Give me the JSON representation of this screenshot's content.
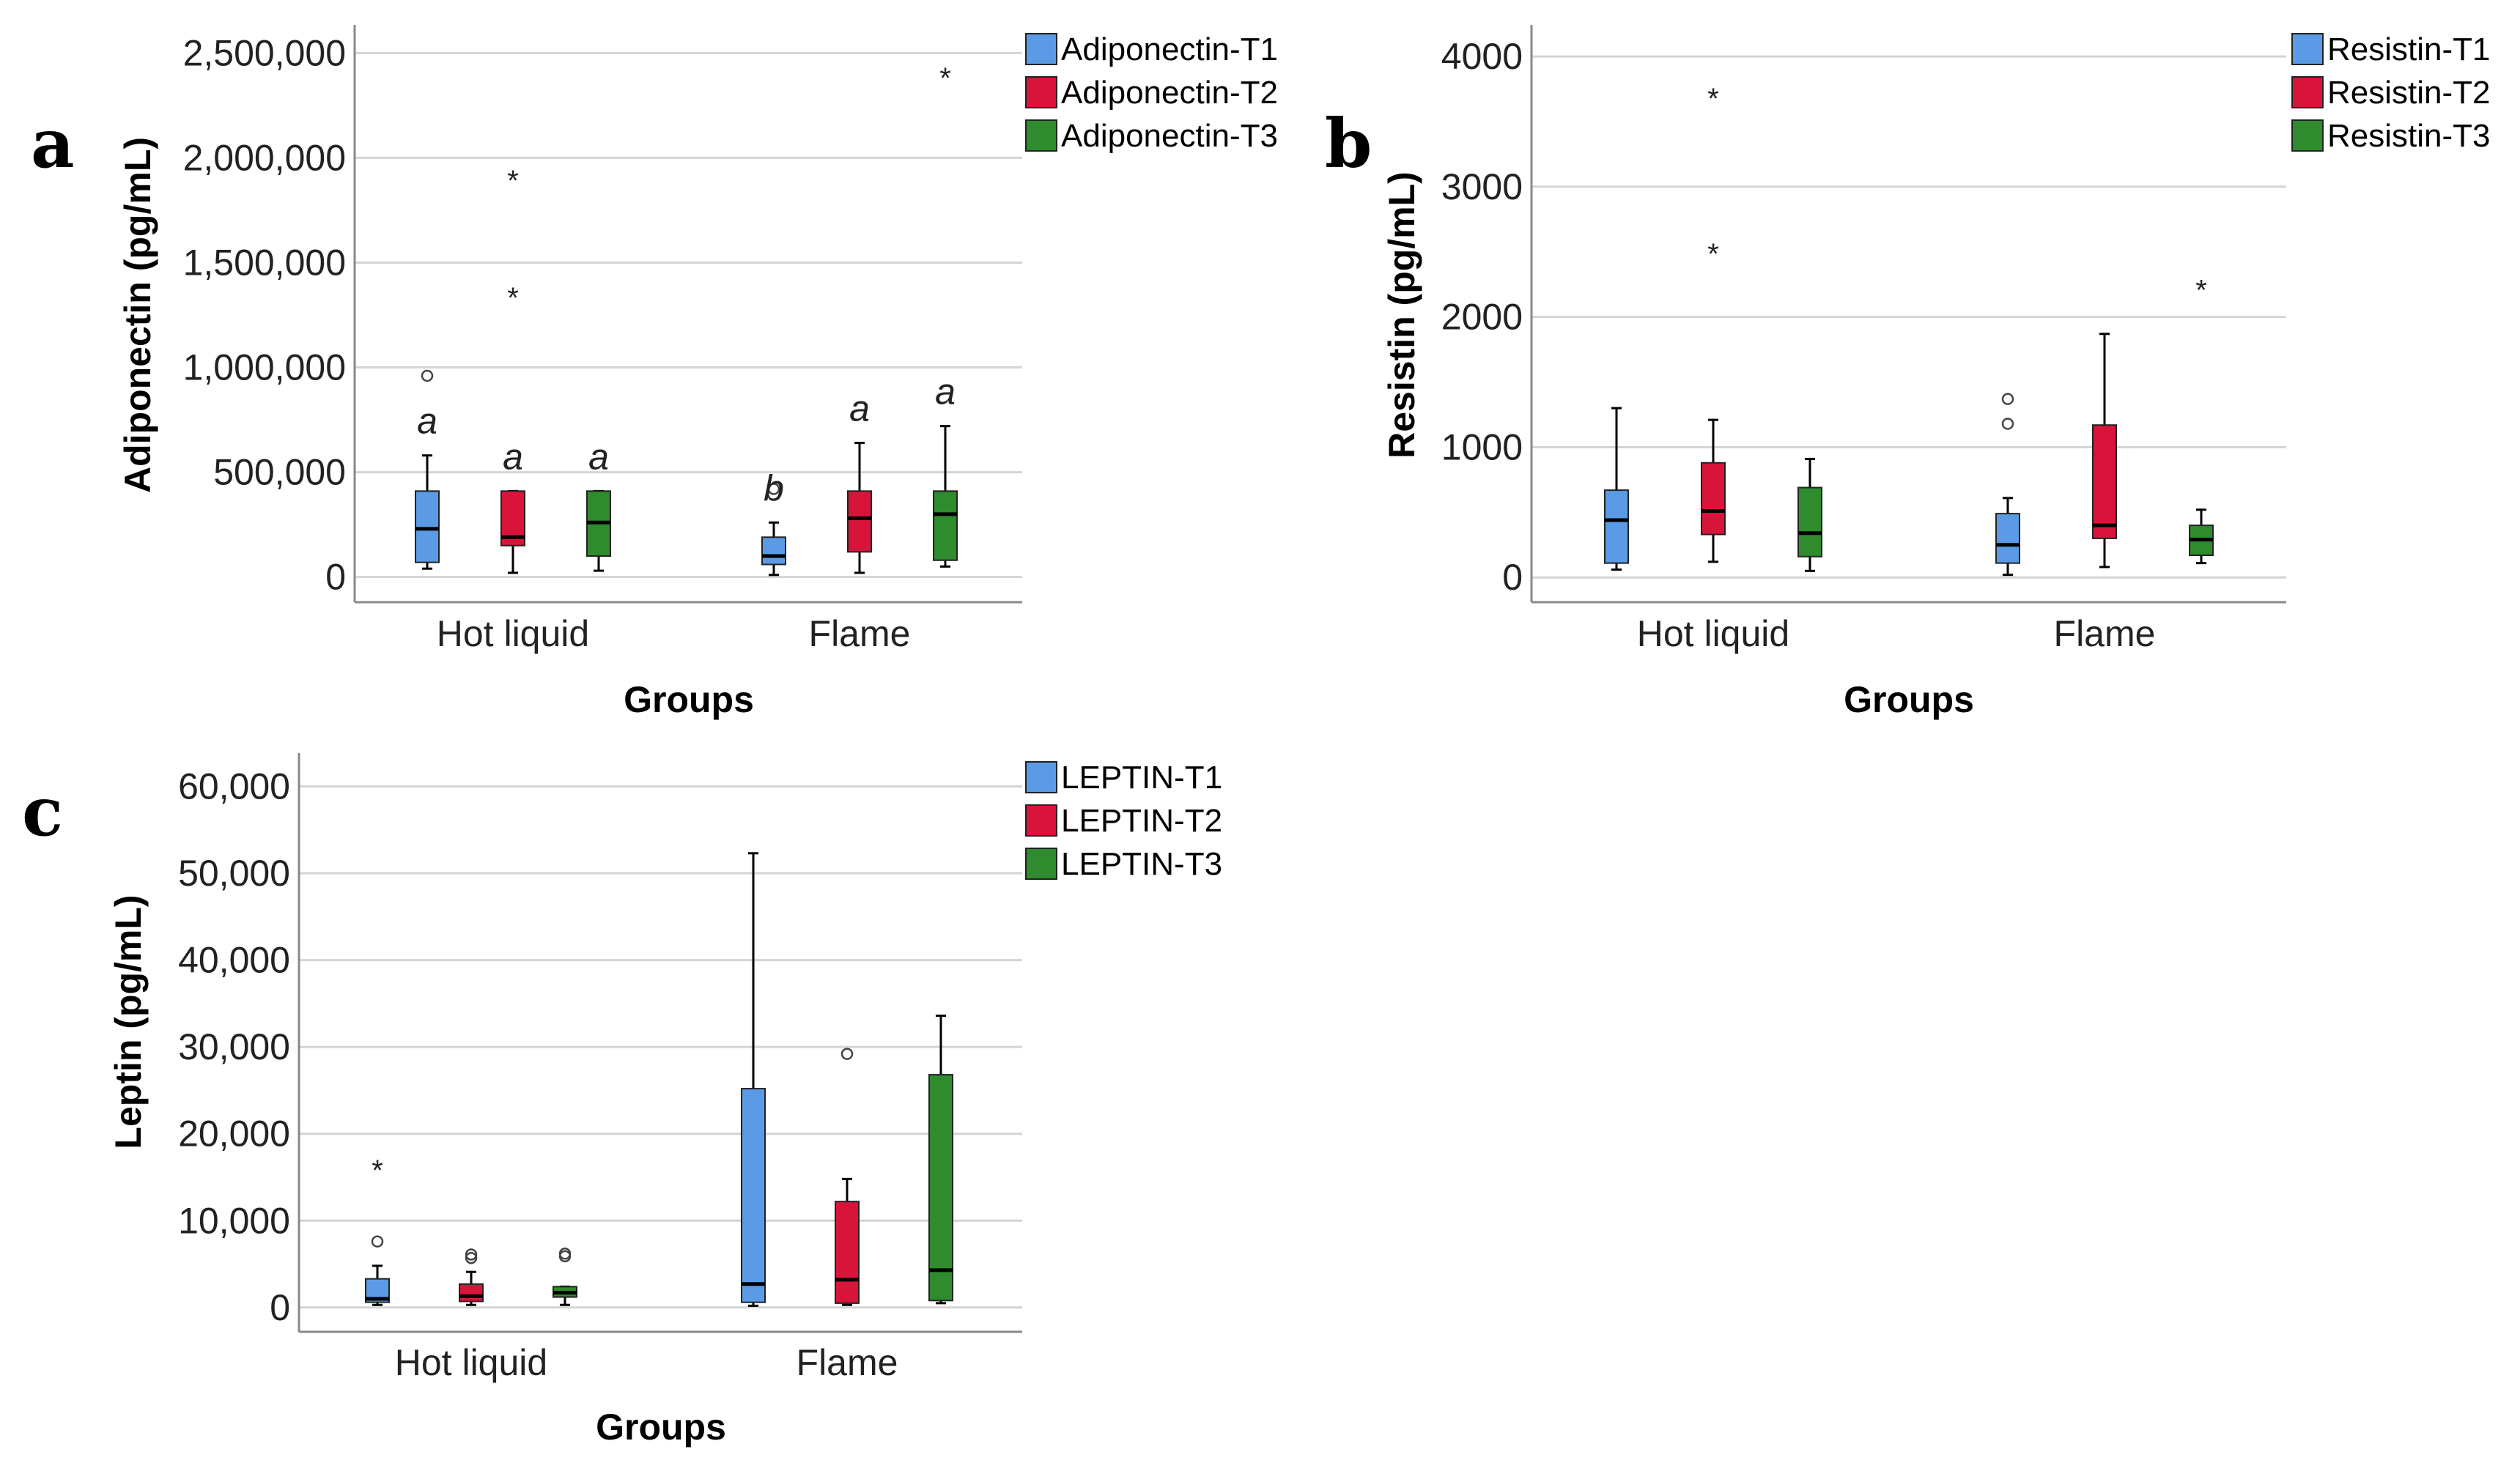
{
  "chart_data": [
    {
      "panel_label": "a",
      "type": "box",
      "xlabel": "Groups",
      "ylabel": "Adiponectin (pg/mL)",
      "ylim": [
        -120000,
        2620000
      ],
      "yticks": [
        0,
        500000,
        1000000,
        1500000,
        2000000,
        2500000
      ],
      "ytick_labels": [
        "0",
        "500,000",
        "1,000,000",
        "1,500,000",
        "2,000,000",
        "2,500,000"
      ],
      "grid": true,
      "legend_position": "top-right",
      "categories": [
        "Hot liquid",
        "Flame"
      ],
      "series": [
        {
          "name": "Adiponectin-T1",
          "color": "#5B9BE6",
          "boxes": [
            {
              "min": 40000,
              "q1": 70000,
              "median": 230000,
              "q3": 410000,
              "max": 580000,
              "outliers": [
                {
                  "value": 960000,
                  "marker": "circle"
                }
              ],
              "sig": "a"
            },
            {
              "min": 10000,
              "q1": 60000,
              "median": 100000,
              "q3": 190000,
              "max": 260000,
              "outliers": [
                {
                  "value": 420000,
                  "marker": "circle"
                }
              ],
              "sig": "b"
            }
          ]
        },
        {
          "name": "Adiponectin-T2",
          "color": "#D9143A",
          "boxes": [
            {
              "min": 20000,
              "q1": 150000,
              "median": 190000,
              "q3": 410000,
              "max": 410000,
              "outliers": [
                {
                  "value": 1340000,
                  "marker": "star"
                },
                {
                  "value": 1900000,
                  "marker": "star"
                }
              ],
              "sig": "a"
            },
            {
              "min": 20000,
              "q1": 120000,
              "median": 280000,
              "q3": 410000,
              "max": 640000,
              "outliers": [],
              "sig": "a"
            }
          ]
        },
        {
          "name": "Adiponectin-T3",
          "color": "#2E8B2E",
          "boxes": [
            {
              "min": 30000,
              "q1": 100000,
              "median": 260000,
              "q3": 410000,
              "max": 410000,
              "outliers": [],
              "sig": "a"
            },
            {
              "min": 50000,
              "q1": 80000,
              "median": 300000,
              "q3": 410000,
              "max": 720000,
              "outliers": [
                {
                  "value": 2390000,
                  "marker": "star"
                }
              ],
              "sig": "a"
            }
          ]
        }
      ]
    },
    {
      "panel_label": "b",
      "type": "box",
      "xlabel": "Groups",
      "ylabel": "Resistin (pg/mL)",
      "ylim": [
        -190,
        4220
      ],
      "yticks": [
        0,
        1000,
        2000,
        3000,
        4000
      ],
      "ytick_labels": [
        "0",
        "1000",
        "2000",
        "3000",
        "4000"
      ],
      "grid": true,
      "legend_position": "top-right",
      "categories": [
        "Hot liquid",
        "Flame"
      ],
      "series": [
        {
          "name": "Resistin-T1",
          "color": "#5B9BE6",
          "boxes": [
            {
              "min": 60,
              "q1": 110,
              "median": 440,
              "q3": 670,
              "max": 1300,
              "outliers": []
            },
            {
              "min": 20,
              "q1": 110,
              "median": 250,
              "q3": 490,
              "max": 610,
              "outliers": [
                {
                  "value": 1180,
                  "marker": "circle"
                },
                {
                  "value": 1370,
                  "marker": "circle"
                }
              ]
            }
          ]
        },
        {
          "name": "Resistin-T2",
          "color": "#D9143A",
          "boxes": [
            {
              "min": 120,
              "q1": 330,
              "median": 510,
              "q3": 880,
              "max": 1210,
              "outliers": [
                {
                  "value": 2500,
                  "marker": "star"
                },
                {
                  "value": 3690,
                  "marker": "star"
                }
              ]
            },
            {
              "min": 80,
              "q1": 300,
              "median": 400,
              "q3": 1170,
              "max": 1870,
              "outliers": []
            }
          ]
        },
        {
          "name": "Resistin-T3",
          "color": "#2E8B2E",
          "boxes": [
            {
              "min": 50,
              "q1": 160,
              "median": 340,
              "q3": 690,
              "max": 910,
              "outliers": []
            },
            {
              "min": 110,
              "q1": 170,
              "median": 290,
              "q3": 400,
              "max": 520,
              "outliers": [
                {
                  "value": 2220,
                  "marker": "star"
                }
              ]
            }
          ]
        }
      ]
    },
    {
      "panel_label": "c",
      "type": "box",
      "xlabel": "Groups",
      "ylabel": "Leptin (pg/mL)",
      "ylim": [
        -2800,
        63500
      ],
      "yticks": [
        0,
        10000,
        20000,
        30000,
        40000,
        50000,
        60000
      ],
      "ytick_labels": [
        "0",
        "10,000",
        "20,000",
        "30,000",
        "40,000",
        "50,000",
        "60,000"
      ],
      "grid": true,
      "legend_position": "top-right",
      "categories": [
        "Hot liquid",
        "Flame"
      ],
      "series": [
        {
          "name": "LEPTIN-T1",
          "color": "#5B9BE6",
          "boxes": [
            {
              "min": 300,
              "q1": 600,
              "median": 1000,
              "q3": 3300,
              "max": 4800,
              "outliers": [
                {
                  "value": 7600,
                  "marker": "circle"
                },
                {
                  "value": 16000,
                  "marker": "star"
                }
              ]
            },
            {
              "min": 200,
              "q1": 600,
              "median": 2700,
              "q3": 25200,
              "max": 52300,
              "outliers": []
            }
          ]
        },
        {
          "name": "LEPTIN-T2",
          "color": "#D9143A",
          "boxes": [
            {
              "min": 300,
              "q1": 700,
              "median": 1300,
              "q3": 2700,
              "max": 4100,
              "outliers": [
                {
                  "value": 5700,
                  "marker": "circle"
                },
                {
                  "value": 6100,
                  "marker": "circle"
                }
              ]
            },
            {
              "min": 300,
              "q1": 500,
              "median": 3200,
              "q3": 12200,
              "max": 14800,
              "outliers": [
                {
                  "value": 29200,
                  "marker": "circle"
                }
              ]
            }
          ]
        },
        {
          "name": "LEPTIN-T3",
          "color": "#2E8B2E",
          "boxes": [
            {
              "min": 300,
              "q1": 1200,
              "median": 1700,
              "q3": 2400,
              "max": 2400,
              "outliers": [
                {
                  "value": 5900,
                  "marker": "circle"
                },
                {
                  "value": 6200,
                  "marker": "circle"
                }
              ]
            },
            {
              "min": 500,
              "q1": 800,
              "median": 4300,
              "q3": 26800,
              "max": 33600,
              "outliers": []
            }
          ]
        }
      ]
    }
  ]
}
